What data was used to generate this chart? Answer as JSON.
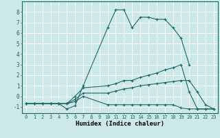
{
  "xlabel": "Humidex (Indice chaleur)",
  "bg_color": "#cce8e8",
  "line_color": "#1a6666",
  "grid_color": "#ffffff",
  "xlim": [
    -0.5,
    23.5
  ],
  "ylim": [
    -1.6,
    9.0
  ],
  "xticks": [
    0,
    1,
    2,
    3,
    4,
    5,
    6,
    7,
    8,
    9,
    10,
    11,
    12,
    13,
    14,
    15,
    16,
    17,
    18,
    19,
    20,
    21,
    22,
    23
  ],
  "yticks": [
    -1,
    0,
    1,
    2,
    3,
    4,
    5,
    6,
    7,
    8
  ],
  "lines": [
    {
      "x": [
        0,
        1,
        2,
        3,
        4,
        5,
        6,
        7,
        10,
        11,
        12,
        13,
        14,
        15,
        16,
        17,
        18,
        19,
        20
      ],
      "y": [
        -0.7,
        -0.7,
        -0.7,
        -0.7,
        -0.7,
        -1.2,
        -0.9,
        1.0,
        6.5,
        8.2,
        8.2,
        6.5,
        7.5,
        7.5,
        7.3,
        7.3,
        6.5,
        5.5,
        3.0
      ]
    },
    {
      "x": [
        0,
        1,
        2,
        3,
        4,
        5,
        6,
        7,
        10,
        11,
        12,
        13,
        14,
        15,
        16,
        17,
        18,
        19,
        20,
        21,
        22,
        23
      ],
      "y": [
        -0.7,
        -0.7,
        -0.7,
        -0.7,
        -0.7,
        -0.7,
        0.0,
        0.8,
        1.0,
        1.2,
        1.5,
        1.5,
        1.8,
        2.0,
        2.2,
        2.5,
        2.7,
        3.0,
        0.4,
        -1.2,
        -1.2,
        -1.2
      ]
    },
    {
      "x": [
        0,
        1,
        2,
        3,
        4,
        5,
        6,
        7,
        10,
        11,
        12,
        13,
        14,
        15,
        16,
        17,
        18,
        19,
        20,
        21,
        22,
        23
      ],
      "y": [
        -0.7,
        -0.7,
        -0.7,
        -0.7,
        -0.7,
        -0.7,
        -0.3,
        0.3,
        0.3,
        0.5,
        0.7,
        0.8,
        1.0,
        1.1,
        1.2,
        1.3,
        1.4,
        1.5,
        1.5,
        0.4,
        -0.8,
        -1.2
      ]
    },
    {
      "x": [
        0,
        1,
        2,
        3,
        4,
        5,
        6,
        7,
        10,
        11,
        12,
        13,
        14,
        15,
        16,
        17,
        18,
        19,
        20,
        21,
        22,
        23
      ],
      "y": [
        -0.7,
        -0.7,
        -0.7,
        -0.7,
        -0.7,
        -0.7,
        -0.5,
        0.0,
        -0.8,
        -0.8,
        -0.8,
        -0.8,
        -0.8,
        -0.8,
        -0.8,
        -0.8,
        -0.8,
        -1.1,
        -1.2,
        -1.2,
        -1.2,
        -1.2
      ]
    }
  ]
}
